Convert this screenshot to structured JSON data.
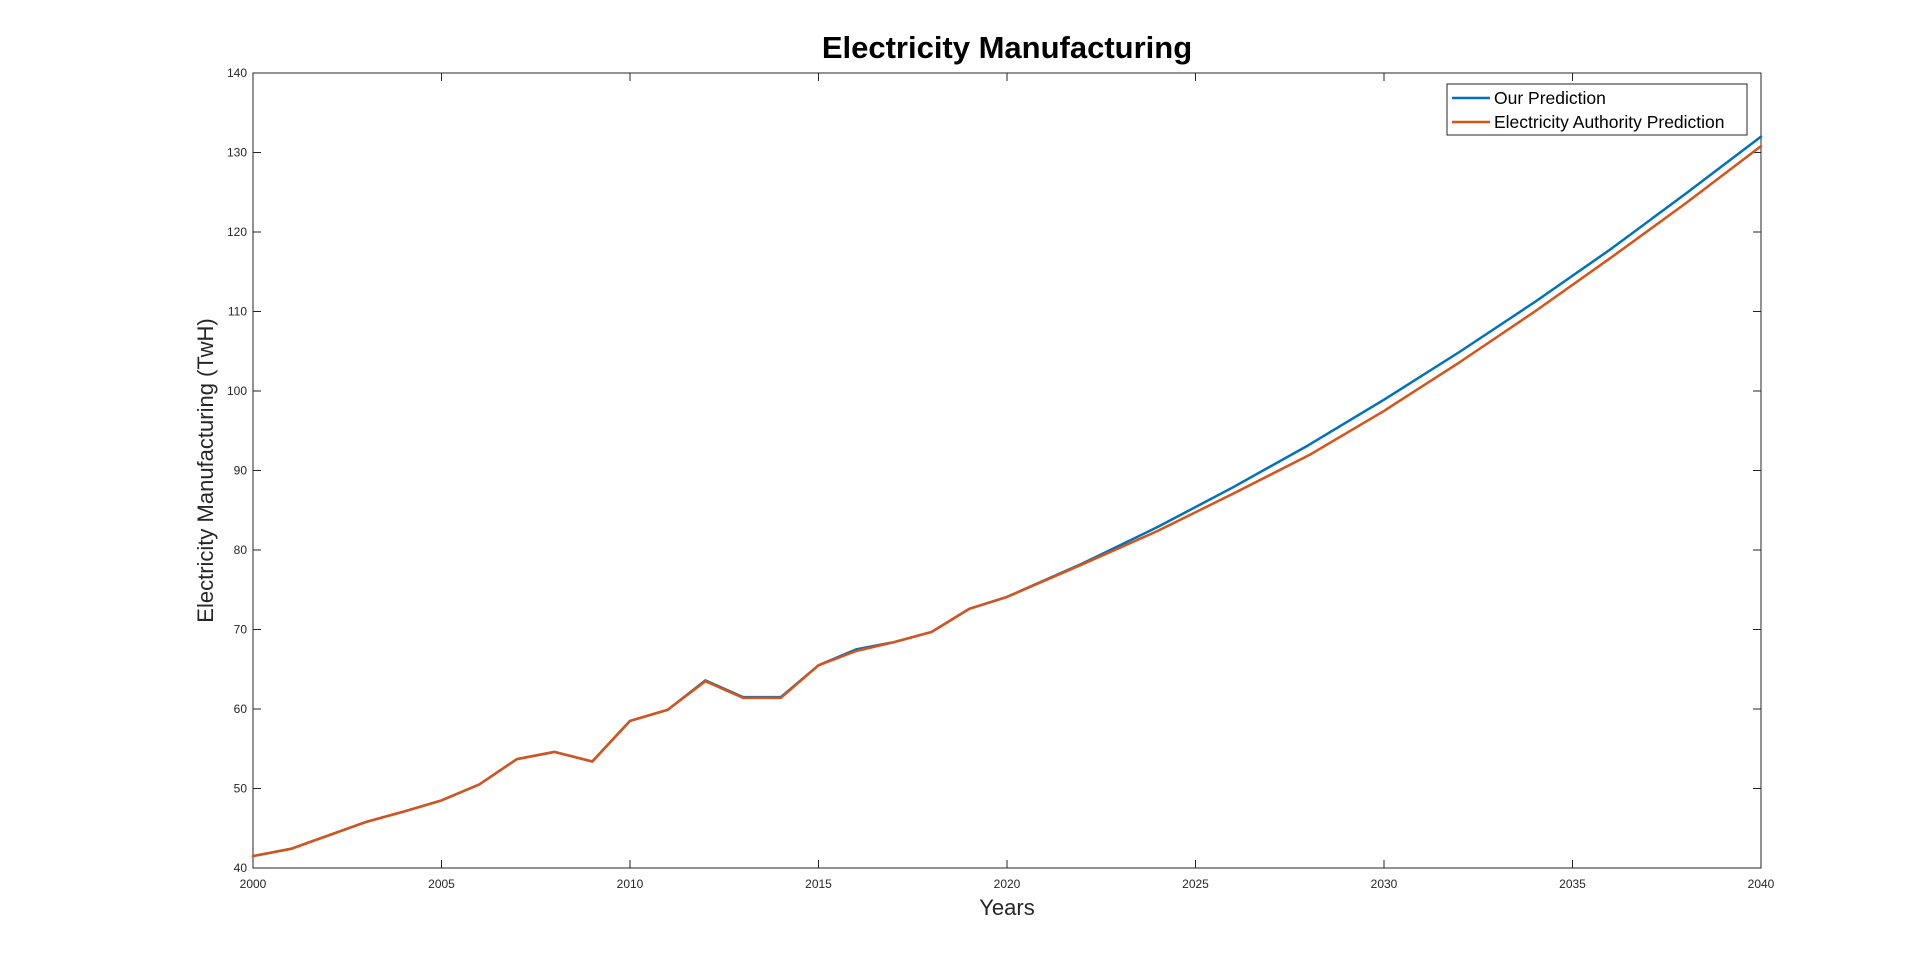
{
  "chart_data": {
    "type": "line",
    "title": "Electricity Manufacturing",
    "xlabel": "Years",
    "ylabel": "Electricity Manufacturing (TwH)",
    "xlim": [
      2000,
      2040
    ],
    "ylim": [
      40,
      140
    ],
    "xticks": [
      2000,
      2005,
      2010,
      2015,
      2020,
      2025,
      2030,
      2035,
      2040
    ],
    "yticks": [
      40,
      50,
      60,
      70,
      80,
      90,
      100,
      110,
      120,
      130,
      140
    ],
    "grid": false,
    "legend_position": "top-right",
    "series": [
      {
        "name": "Our Prediction",
        "color": "#0072BD",
        "x": [
          2000,
          2001,
          2002,
          2003,
          2004,
          2005,
          2006,
          2007,
          2008,
          2009,
          2010,
          2011,
          2012,
          2013,
          2014,
          2015,
          2016,
          2017,
          2018,
          2019,
          2020,
          2022,
          2024,
          2026,
          2028,
          2030,
          2032,
          2034,
          2036,
          2038,
          2040
        ],
        "values": [
          41.5,
          42.4,
          44.1,
          45.8,
          47.1,
          48.5,
          50.5,
          53.7,
          54.6,
          53.4,
          58.5,
          59.9,
          63.6,
          61.5,
          61.5,
          65.5,
          67.5,
          68.4,
          69.7,
          72.6,
          74.1,
          78.3,
          82.9,
          87.9,
          93.2,
          98.9,
          104.9,
          111.2,
          117.8,
          124.8,
          132.0
        ]
      },
      {
        "name": "Electricity Authority Prediction",
        "color": "#D95319",
        "x": [
          2000,
          2001,
          2002,
          2003,
          2004,
          2005,
          2006,
          2007,
          2008,
          2009,
          2010,
          2011,
          2012,
          2013,
          2014,
          2015,
          2016,
          2017,
          2018,
          2019,
          2020,
          2022,
          2024,
          2026,
          2028,
          2030,
          2032,
          2034,
          2036,
          2038,
          2040
        ],
        "values": [
          41.5,
          42.4,
          44.1,
          45.8,
          47.1,
          48.5,
          50.5,
          53.7,
          54.6,
          53.4,
          58.5,
          59.9,
          63.5,
          61.4,
          61.4,
          65.5,
          67.3,
          68.4,
          69.7,
          72.6,
          74.1,
          78.2,
          82.4,
          87.1,
          91.9,
          97.5,
          103.6,
          110.0,
          116.7,
          123.6,
          130.8
        ]
      }
    ]
  }
}
